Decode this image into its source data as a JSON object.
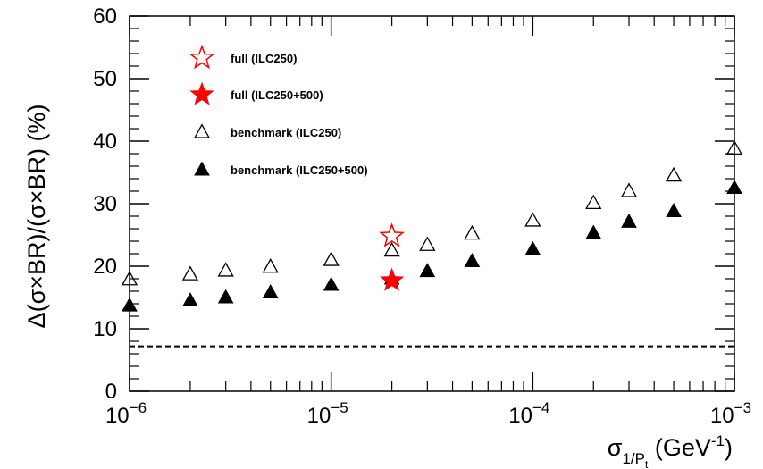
{
  "chart_data": {
    "type": "scatter",
    "title": "",
    "xlabel": "σ",
    "xlabel_subscript": "1/P",
    "xlabel_subsubscript": "t",
    "xlabel_unit": " (GeV",
    "xlabel_unit_exp": "-1",
    "xlabel_unit_close": ")",
    "ylabel": "Δ(σ×BR)/(σ×BR) (%)",
    "xscale": "log",
    "xlim": [
      1e-06,
      0.001
    ],
    "ylim": [
      0,
      60
    ],
    "y_ticks": [
      {
        "value": 0,
        "label": "0"
      },
      {
        "value": 10,
        "label": "10"
      },
      {
        "value": 20,
        "label": "20"
      },
      {
        "value": 30,
        "label": "30"
      },
      {
        "value": 40,
        "label": "40"
      },
      {
        "value": 50,
        "label": "50"
      },
      {
        "value": 60,
        "label": "60"
      }
    ],
    "x_ticks": [
      {
        "value": 1e-06,
        "base": "10",
        "exp": "−6"
      },
      {
        "value": 1e-05,
        "base": "10",
        "exp": "−5"
      },
      {
        "value": 0.0001,
        "base": "10",
        "exp": "−4"
      },
      {
        "value": 0.001,
        "base": "10",
        "exp": "−3"
      }
    ],
    "reference_line": {
      "y": 7.2,
      "style": "dashed"
    },
    "series": [
      {
        "name": "full (ILC250)",
        "marker": "open-star",
        "color": "#ff0000",
        "points": [
          {
            "x": 2e-05,
            "y": 24.8
          }
        ]
      },
      {
        "name": "full (ILC250+500)",
        "marker": "filled-star",
        "color": "#ff0000",
        "points": [
          {
            "x": 2e-05,
            "y": 17.7
          }
        ]
      },
      {
        "name": "benchmark (ILC250)",
        "marker": "open-triangle",
        "color": "#000000",
        "points": [
          {
            "x": 1e-06,
            "y": 17.9
          },
          {
            "x": 2e-06,
            "y": 18.7
          },
          {
            "x": 3e-06,
            "y": 19.3
          },
          {
            "x": 5e-06,
            "y": 19.9
          },
          {
            "x": 1e-05,
            "y": 21.0
          },
          {
            "x": 2e-05,
            "y": 22.5
          },
          {
            "x": 3e-05,
            "y": 23.4
          },
          {
            "x": 5e-05,
            "y": 25.2
          },
          {
            "x": 0.0001,
            "y": 27.3
          },
          {
            "x": 0.0002,
            "y": 30.1
          },
          {
            "x": 0.0003,
            "y": 32.0
          },
          {
            "x": 0.0005,
            "y": 34.5
          },
          {
            "x": 0.001,
            "y": 38.8
          }
        ]
      },
      {
        "name": "benchmark (ILC250+500)",
        "marker": "filled-triangle",
        "color": "#000000",
        "points": [
          {
            "x": 1e-06,
            "y": 13.7
          },
          {
            "x": 2e-06,
            "y": 14.5
          },
          {
            "x": 3e-06,
            "y": 15.0
          },
          {
            "x": 5e-06,
            "y": 15.8
          },
          {
            "x": 1e-05,
            "y": 17.0
          },
          {
            "x": 2e-05,
            "y": 18.0
          },
          {
            "x": 3e-05,
            "y": 19.2
          },
          {
            "x": 5e-05,
            "y": 20.8
          },
          {
            "x": 0.0001,
            "y": 22.7
          },
          {
            "x": 0.0002,
            "y": 25.3
          },
          {
            "x": 0.0003,
            "y": 27.1
          },
          {
            "x": 0.0005,
            "y": 28.8
          },
          {
            "x": 0.001,
            "y": 32.5
          }
        ]
      }
    ],
    "legend": {
      "placement": "top-left",
      "frame": false
    },
    "grid": false
  }
}
